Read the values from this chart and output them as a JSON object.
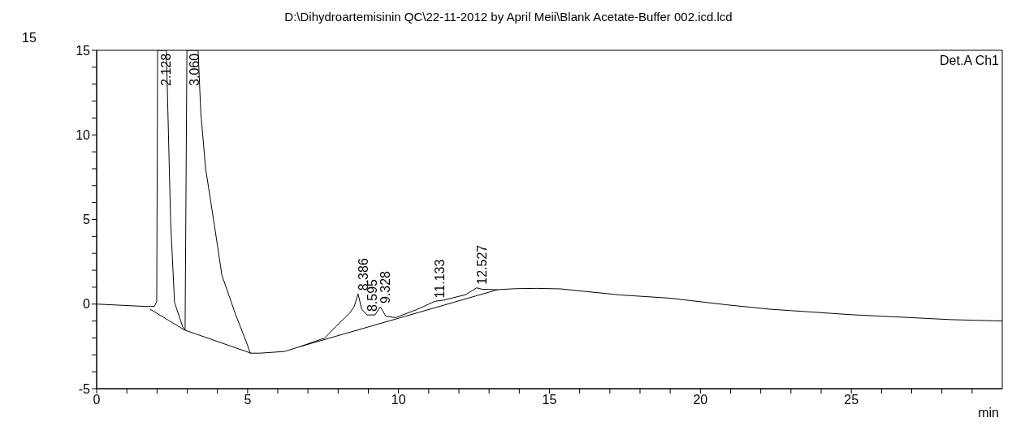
{
  "chart_data": {
    "type": "line",
    "title": "D:\\Dihydroartemisinin QC\\22-11-2012 by April Meii\\Blank Acetate-Buffer 002.icd.lcd",
    "xlabel": "min",
    "xlim": [
      0,
      30
    ],
    "ylim": [
      -5,
      15
    ],
    "xticks": [
      0,
      {
        "value": 1,
        "label": null
      },
      {
        "value": 2,
        "label": null
      },
      {
        "value": 3,
        "label": null
      },
      {
        "value": 4,
        "label": null
      },
      5,
      {
        "value": 6,
        "label": null
      },
      {
        "value": 7,
        "label": null
      },
      {
        "value": 8,
        "label": null
      },
      {
        "value": 9,
        "label": null
      },
      10,
      {
        "value": 11,
        "label": null
      },
      {
        "value": 12,
        "label": null
      },
      {
        "value": 13,
        "label": null
      },
      {
        "value": 14,
        "label": null
      },
      15,
      {
        "value": 16,
        "label": null
      },
      {
        "value": 17,
        "label": null
      },
      {
        "value": 18,
        "label": null
      },
      {
        "value": 19,
        "label": null
      },
      20,
      {
        "value": 21,
        "label": null
      },
      {
        "value": 22,
        "label": null
      },
      {
        "value": 23,
        "label": null
      },
      {
        "value": 24,
        "label": null
      },
      25,
      {
        "value": 26,
        "label": null
      },
      {
        "value": 27,
        "label": null
      },
      {
        "value": 28,
        "label": null
      },
      {
        "value": 29,
        "label": null
      }
    ],
    "yticks": [
      -5,
      {
        "value": -4,
        "label": null
      },
      {
        "value": -3,
        "label": null
      },
      {
        "value": -2,
        "label": null
      },
      {
        "value": -1,
        "label": null
      },
      0,
      {
        "value": 1,
        "label": null
      },
      {
        "value": 2,
        "label": null
      },
      {
        "value": 3,
        "label": null
      },
      {
        "value": 4,
        "label": null
      },
      5,
      {
        "value": 6,
        "label": null
      },
      {
        "value": 7,
        "label": null
      },
      {
        "value": 8,
        "label": null
      },
      {
        "value": 9,
        "label": null
      },
      10,
      {
        "value": 11,
        "label": null
      },
      {
        "value": 12,
        "label": null
      },
      {
        "value": 13,
        "label": null
      },
      {
        "value": 14,
        "label": null
      },
      15
    ],
    "series": [
      {
        "color": "#000000",
        "x": [
          0,
          1.64,
          1.91,
          1.99,
          2.02,
          2.31,
          2.45,
          2.58,
          2.85,
          2.93,
          2.99,
          3.36,
          3.45,
          3.61,
          3.88,
          4.15,
          4.6,
          4.95,
          5.09,
          5.41,
          6.22,
          6.76,
          7.56,
          7.91,
          8.37,
          8.53,
          8.66,
          8.78,
          8.96,
          9.22,
          9.4,
          9.58,
          9.9,
          10.61,
          11.2,
          11.51,
          12.23,
          12.59,
          12.77,
          13.28,
          13.84,
          14.59,
          15.36,
          17.34,
          18.99,
          20.86,
          22.29,
          25.03,
          28.33,
          30
        ],
        "values": [
          0,
          -0.14,
          -0.14,
          0.14,
          15,
          15,
          4.9,
          0.1,
          -1.34,
          -1.53,
          15,
          15,
          11.3,
          8.0,
          4.9,
          1.7,
          -0.6,
          -2.2,
          -2.9,
          -2.9,
          -2.8,
          -2.5,
          -2.0,
          -1.35,
          -0.56,
          -0.15,
          0.6,
          -0.3,
          -0.64,
          -0.64,
          -0.16,
          -0.72,
          -0.8,
          -0.32,
          0.16,
          0.24,
          0.56,
          0.96,
          0.88,
          0.85,
          0.91,
          0.93,
          0.9,
          0.54,
          0.35,
          -0.04,
          -0.3,
          -0.63,
          -0.92,
          -1.0
        ]
      },
      {
        "color": "#000000",
        "x": [
          1.77,
          2.91,
          5.11,
          6.0,
          6.76,
          13.28
        ],
        "values": [
          -0.3,
          -1.53,
          -2.9,
          null,
          -2.5,
          0.85
        ]
      }
    ],
    "annotations": [
      "Det.A Ch1",
      "15",
      {
        "text": "2.128",
        "x": 2.128,
        "y": 12.7
      },
      {
        "text": "3.060",
        "x": 3.06,
        "y": 12.7
      },
      {
        "text": "8.386",
        "x": 8.66,
        "y": 0.6
      },
      {
        "text": "8.595",
        "x": 8.96,
        "y": -0.64
      },
      {
        "text": "9.328",
        "x": 9.4,
        "y": -0.16
      },
      {
        "text": "11.133",
        "x": 11.2,
        "y": 0.16
      },
      {
        "text": "12.527",
        "x": 12.59,
        "y": 0.96
      }
    ]
  }
}
